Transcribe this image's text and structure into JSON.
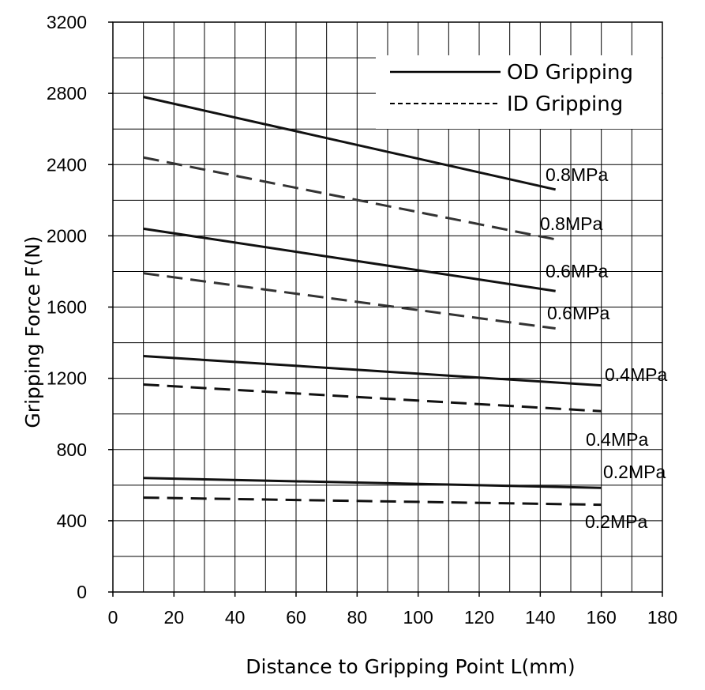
{
  "chart_data": {
    "type": "line",
    "title": "",
    "xlabel": "Distance to Gripping Point L(mm)",
    "ylabel": "Gripping Force F(N)",
    "xlim": [
      0,
      180
    ],
    "ylim": [
      0,
      3200
    ],
    "x_ticks": [
      0,
      20,
      40,
      60,
      80,
      100,
      120,
      140,
      160,
      180
    ],
    "y_ticks": [
      0,
      400,
      800,
      1200,
      1600,
      2000,
      2400,
      2800,
      3200
    ],
    "grid": true,
    "legend": {
      "placement": "top-right",
      "entries": [
        {
          "label": "OD Gripping",
          "style": "solid"
        },
        {
          "label": "ID Gripping",
          "style": "dashed"
        }
      ]
    },
    "series": [
      {
        "label": "0.8MPa",
        "group": "OD Gripping",
        "style": "solid",
        "color": "#111111",
        "x": [
          10,
          145
        ],
        "y": [
          2780,
          2260
        ]
      },
      {
        "label": "0.8MPa",
        "group": "ID Gripping",
        "style": "dashed",
        "color": "#333333",
        "x": [
          10,
          145
        ],
        "y": [
          2440,
          1980
        ]
      },
      {
        "label": "0.6MPa",
        "group": "OD Gripping",
        "style": "solid",
        "color": "#111111",
        "x": [
          10,
          145
        ],
        "y": [
          2040,
          1690
        ]
      },
      {
        "label": "0.6MPa",
        "group": "ID Gripping",
        "style": "dashed",
        "color": "#333333",
        "x": [
          10,
          145
        ],
        "y": [
          1790,
          1480
        ]
      },
      {
        "label": "0.4MPa",
        "group": "OD Gripping",
        "style": "solid",
        "color": "#111111",
        "x": [
          10,
          160
        ],
        "y": [
          1325,
          1160
        ]
      },
      {
        "label": "0.4MPa",
        "group": "ID Gripping",
        "style": "dashed",
        "color": "#111111",
        "x": [
          10,
          160
        ],
        "y": [
          1165,
          1015
        ]
      },
      {
        "label": "0.2MPa",
        "group": "OD Gripping",
        "style": "solid",
        "color": "#111111",
        "x": [
          10,
          160
        ],
        "y": [
          640,
          585
        ]
      },
      {
        "label": "0.2MPa",
        "group": "ID Gripping",
        "style": "dashed",
        "color": "#111111",
        "x": [
          10,
          160
        ],
        "y": [
          530,
          490
        ]
      }
    ]
  }
}
